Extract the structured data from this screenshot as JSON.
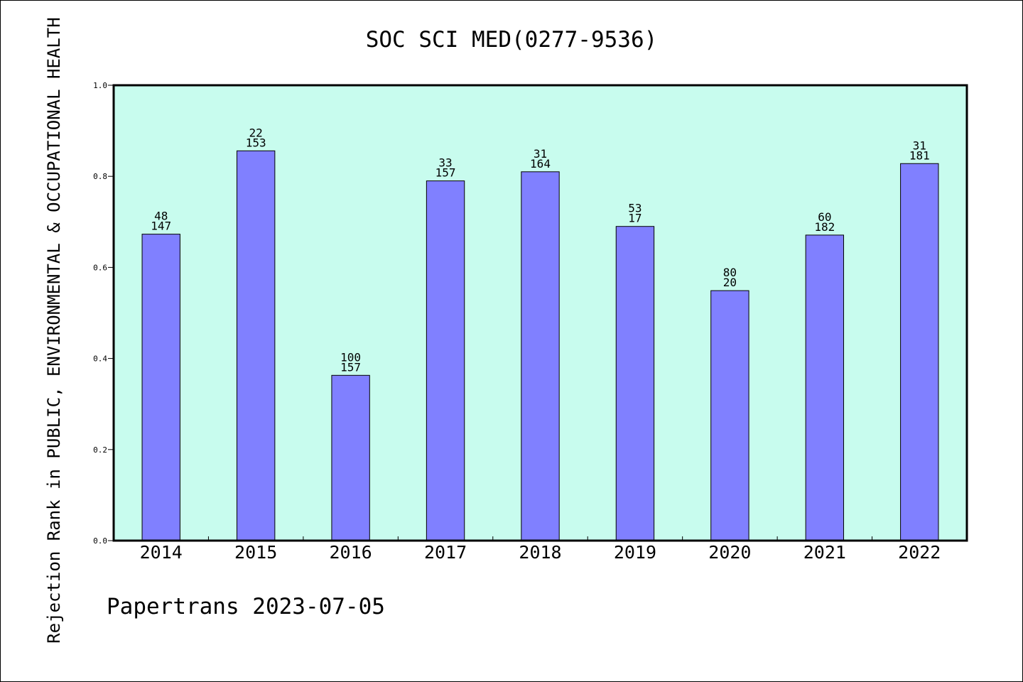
{
  "chart_data": {
    "type": "bar",
    "title": "SOC SCI MED(0277-9536)",
    "ylabel": "Rejection Rank in PUBLIC, ENVIRONMENTAL & OCCUPATIONAL HEALTH",
    "xlabel": "",
    "ylim": [
      0,
      1.0
    ],
    "yticks": [
      "0.0",
      "0.2",
      "0.4",
      "0.6",
      "0.8",
      "1.0"
    ],
    "categories": [
      "2014",
      "2015",
      "2016",
      "2017",
      "2018",
      "2019",
      "2020",
      "2021",
      "2022"
    ],
    "values": [
      0.673,
      0.856,
      0.363,
      0.79,
      0.81,
      0.69,
      0.549,
      0.671,
      0.828
    ],
    "label_top": [
      "48",
      "22",
      "100",
      "33",
      "31",
      "53",
      "80",
      "60",
      "31"
    ],
    "label_bottom": [
      "147",
      "153",
      "157",
      "157",
      "164",
      "17",
      "20",
      "182",
      "181"
    ],
    "grid": false,
    "plot_background": "#c8fcee",
    "bar_color": "#8080ff",
    "bar_edge_color": "#000000"
  },
  "footer": "Papertrans 2023-07-05"
}
